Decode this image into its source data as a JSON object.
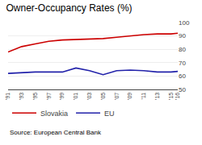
{
  "chart_data": {
    "type": "line",
    "title": "Owner-Occupancy Rates (%)",
    "annotations": [
      "Source: European Central Bank"
    ],
    "x": [
      1991,
      1993,
      1995,
      1997,
      1999,
      2001,
      2003,
      2005,
      2007,
      2009,
      2011,
      2013,
      2015,
      2016
    ],
    "series": [
      {
        "name": "Slovakia",
        "color": "#cc0000",
        "values": [
          78,
          82,
          84,
          86,
          87,
          87.2,
          87.5,
          88.0,
          89.0,
          90.0,
          91.0,
          91.5,
          91.5,
          92.0
        ]
      },
      {
        "name": "EU",
        "color": "#2222aa",
        "values": [
          62,
          62.5,
          63,
          63,
          63,
          66,
          64,
          61,
          64,
          64.5,
          64,
          63,
          63,
          63.5
        ]
      }
    ],
    "xlim": [
      1991,
      2016
    ],
    "xticks": [
      {
        "value": 1991,
        "label": "'91"
      },
      {
        "value": 1993,
        "label": "'93"
      },
      {
        "value": 1995,
        "label": "'95"
      },
      {
        "value": 1997,
        "label": "'97"
      },
      {
        "value": 1999,
        "label": "'99"
      },
      {
        "value": 2001,
        "label": "'01"
      },
      {
        "value": 2003,
        "label": "'03"
      },
      {
        "value": 2005,
        "label": "'05"
      },
      {
        "value": 2007,
        "label": "'07"
      },
      {
        "value": 2009,
        "label": "'09"
      },
      {
        "value": 2011,
        "label": "'11"
      },
      {
        "value": 2013,
        "label": "'13"
      },
      {
        "value": 2015,
        "label": "'15"
      },
      {
        "value": 2016,
        "label": "'16"
      }
    ],
    "ylim": [
      50,
      100
    ],
    "yticks": [
      50,
      60,
      70,
      80,
      90,
      100
    ],
    "grid": true,
    "legend": "bottom"
  }
}
